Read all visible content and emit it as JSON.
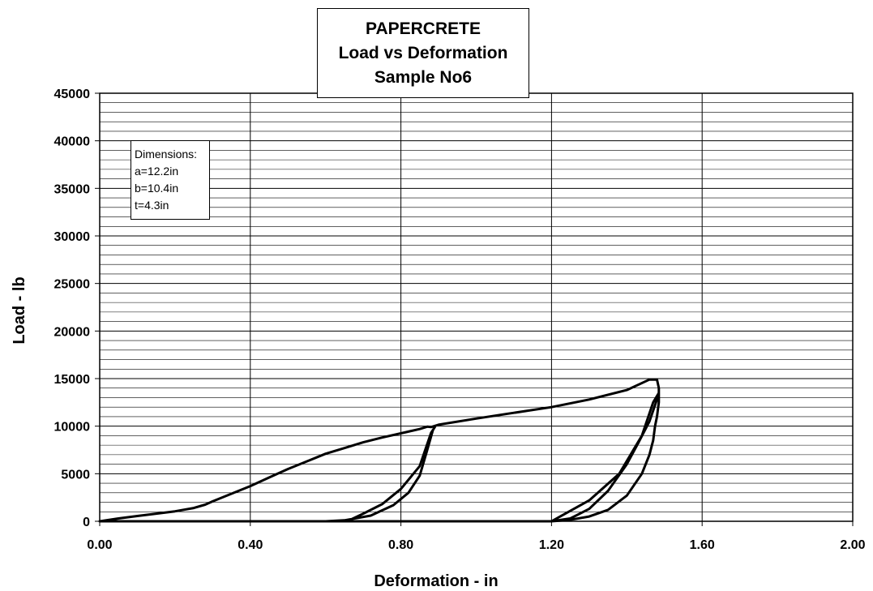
{
  "chart_data": {
    "type": "line",
    "title": [
      "PAPERCRETE",
      "Load vs Deformation",
      "Sample No6"
    ],
    "xlabel": "Deformation - in",
    "ylabel": "Load - lb",
    "xlim": [
      0,
      2
    ],
    "ylim": [
      0,
      45000
    ],
    "x_ticks": [
      "0.00",
      "0.40",
      "0.80",
      "1.20",
      "1.60",
      "2.00"
    ],
    "y_ticks": [
      "0",
      "5000",
      "10000",
      "15000",
      "20000",
      "25000",
      "30000",
      "35000",
      "40000",
      "45000"
    ],
    "grid": {
      "major_x": 0.4,
      "major_y": 5000,
      "minor_y": 1000
    },
    "legend": "none",
    "annotation": [
      "Dimensions:",
      "a=12.2in",
      "b=10.4in",
      "t=4.3in"
    ],
    "series": [
      {
        "values": [
          [
            0.0,
            0
          ],
          [
            0.05,
            300
          ],
          [
            0.1,
            550
          ],
          [
            0.15,
            800
          ],
          [
            0.2,
            1050
          ],
          [
            0.25,
            1400
          ],
          [
            0.28,
            1750
          ],
          [
            0.3,
            2100
          ],
          [
            0.35,
            2900
          ],
          [
            0.4,
            3700
          ],
          [
            0.45,
            4600
          ],
          [
            0.5,
            5500
          ],
          [
            0.55,
            6300
          ],
          [
            0.6,
            7100
          ],
          [
            0.65,
            7700
          ],
          [
            0.7,
            8300
          ],
          [
            0.75,
            8800
          ],
          [
            0.8,
            9250
          ],
          [
            0.85,
            9700
          ],
          [
            0.87,
            9950
          ],
          [
            0.88,
            9900
          ],
          [
            0.9,
            10150
          ],
          [
            1.0,
            10800
          ],
          [
            1.1,
            11400
          ],
          [
            1.2,
            12000
          ],
          [
            1.3,
            12800
          ],
          [
            1.4,
            13800
          ],
          [
            1.46,
            14900
          ],
          [
            1.48,
            14900
          ],
          [
            1.485,
            14000
          ],
          [
            1.485,
            12500
          ],
          [
            1.48,
            11000
          ],
          [
            1.475,
            10000
          ],
          [
            1.47,
            8500
          ],
          [
            1.46,
            7000
          ],
          [
            1.44,
            5000
          ],
          [
            1.4,
            2700
          ],
          [
            1.35,
            1200
          ],
          [
            1.3,
            500
          ],
          [
            1.25,
            150
          ],
          [
            1.2,
            0
          ],
          [
            1.0,
            0
          ],
          [
            0.88,
            0
          ],
          [
            0.85,
            0
          ],
          [
            0.8,
            0
          ],
          [
            0.75,
            0
          ],
          [
            0.7,
            0
          ],
          [
            0.65,
            0
          ],
          [
            0.66,
            50
          ],
          [
            0.7,
            800
          ],
          [
            0.75,
            1800
          ],
          [
            0.8,
            3400
          ],
          [
            0.85,
            5800
          ],
          [
            0.88,
            9300
          ],
          [
            0.89,
            9900
          ],
          [
            0.885,
            9600
          ],
          [
            0.87,
            7500
          ],
          [
            0.85,
            4800
          ],
          [
            0.82,
            3000
          ],
          [
            0.78,
            1700
          ],
          [
            0.72,
            600
          ],
          [
            0.65,
            100
          ],
          [
            0.6,
            0
          ],
          [
            0.5,
            0
          ],
          [
            0.4,
            0
          ],
          [
            0.3,
            0
          ],
          [
            0.2,
            0
          ],
          [
            0.1,
            0
          ],
          [
            0.0,
            0
          ],
          [
            0.65,
            0
          ],
          [
            1.2,
            0
          ],
          [
            1.3,
            2200
          ],
          [
            1.38,
            5000
          ],
          [
            1.44,
            9000
          ],
          [
            1.47,
            12500
          ],
          [
            1.485,
            13500
          ],
          [
            1.48,
            12800
          ],
          [
            1.46,
            10500
          ],
          [
            1.43,
            8200
          ],
          [
            1.4,
            6000
          ],
          [
            1.35,
            3200
          ],
          [
            1.3,
            1300
          ],
          [
            1.25,
            300
          ],
          [
            1.2,
            0
          ]
        ]
      }
    ]
  }
}
